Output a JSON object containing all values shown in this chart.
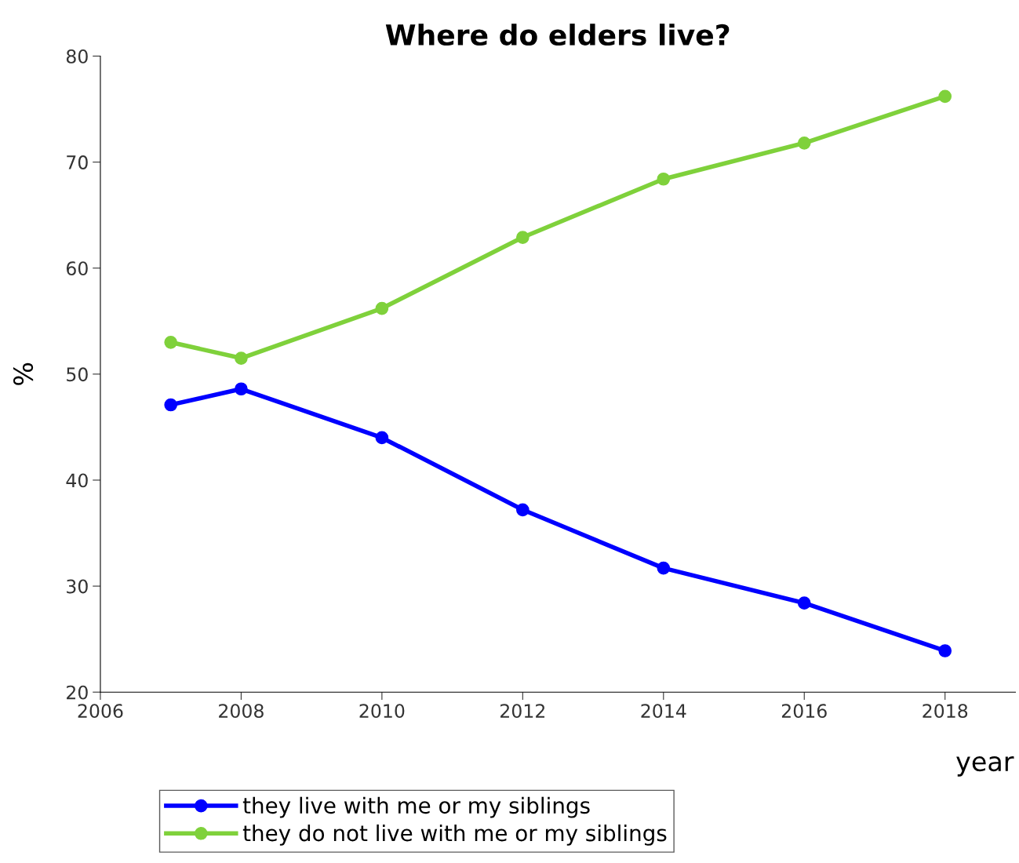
{
  "chart_data": {
    "type": "line",
    "title": "Where do elders live?",
    "xlabel": "year",
    "ylabel": "%",
    "x": [
      2007,
      2008,
      2010,
      2012,
      2014,
      2016,
      2018
    ],
    "series": [
      {
        "name": "they live with me or my siblings",
        "color": "#0000ff",
        "values": [
          47.1,
          48.6,
          44.0,
          37.2,
          31.7,
          28.4,
          23.9
        ]
      },
      {
        "name": "they do not live with me or my siblings",
        "color": "#7fd13b",
        "values": [
          53.0,
          51.5,
          56.2,
          62.9,
          68.4,
          71.8,
          76.2
        ]
      }
    ],
    "xlim": [
      2006,
      2019
    ],
    "xticks": [
      2006,
      2008,
      2010,
      2012,
      2014,
      2016,
      2018
    ],
    "ylim": [
      20,
      80
    ],
    "yticks": [
      20,
      30,
      40,
      50,
      60,
      70,
      80
    ],
    "grid": false,
    "legend": "bottom",
    "marker": "circle",
    "line_style": "solid"
  }
}
